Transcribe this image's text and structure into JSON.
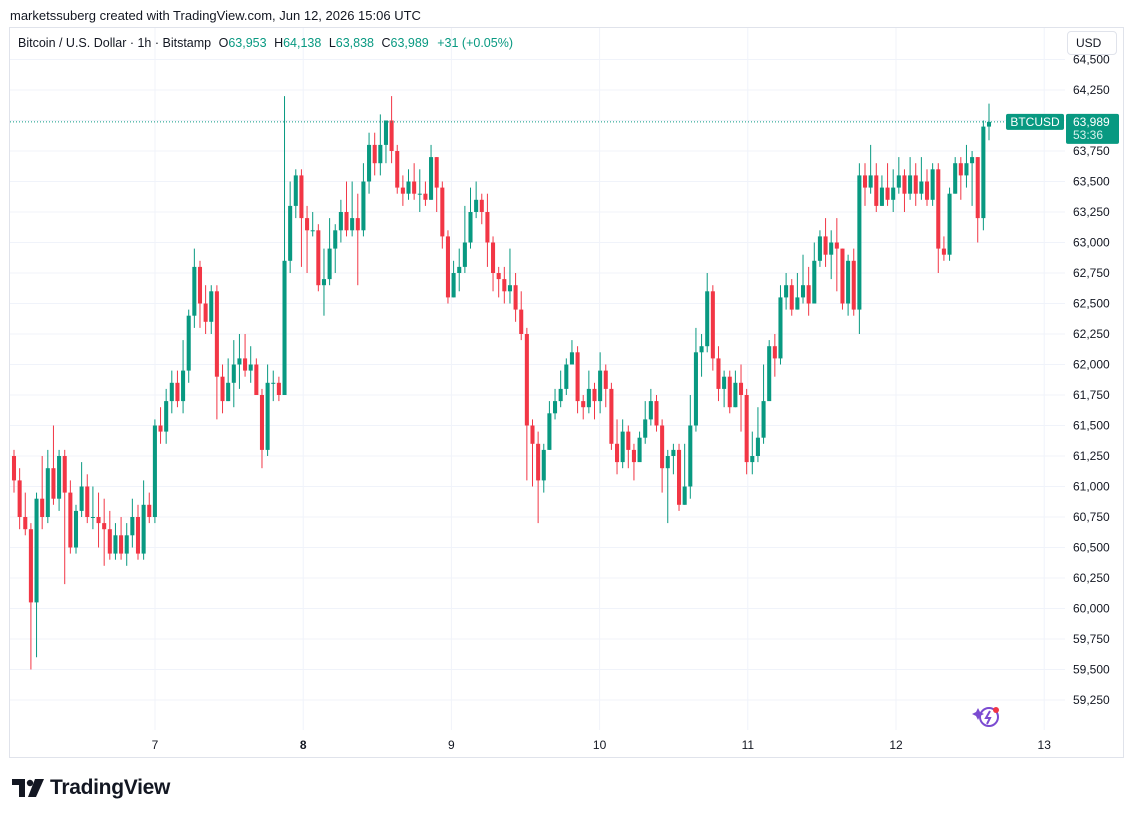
{
  "header": {
    "credit": "marketssuberg created with TradingView.com, Jun 12, 2026 15:06 UTC",
    "symbol": "Bitcoin / U.S. Dollar · 1h · Bitstamp",
    "o_label": "O",
    "o_value": "63,953",
    "h_label": "H",
    "h_value": "64,138",
    "l_label": "L",
    "l_value": "63,838",
    "c_label": "C",
    "c_value": "63,989",
    "change": "+31 (+0.05%)",
    "currency_button": "USD"
  },
  "brand": {
    "name": "TradingView"
  },
  "colors": {
    "up": "#089981",
    "down": "#f23645",
    "grid": "#f0f3fa",
    "text": "#131722"
  },
  "chart_data": {
    "type": "candlestick",
    "symbol": "BTCUSD",
    "interval": "1h",
    "ylim": [
      59100,
      64500
    ],
    "y_ticks": [
      "59,250",
      "59,500",
      "59,750",
      "60,000",
      "60,250",
      "60,500",
      "60,750",
      "61,000",
      "61,250",
      "61,500",
      "61,750",
      "62,000",
      "62,250",
      "62,500",
      "62,750",
      "63,000",
      "63,250",
      "63,500",
      "63,750",
      "64,000",
      "64,250",
      "64,500"
    ],
    "y_tick_values": [
      59250,
      59500,
      59750,
      60000,
      60250,
      60500,
      60750,
      61000,
      61250,
      61500,
      61750,
      62000,
      62250,
      62500,
      62750,
      63000,
      63250,
      63500,
      63750,
      64000,
      64250,
      64500
    ],
    "x_ticks": [
      {
        "label": "7",
        "day": 7,
        "bold": false
      },
      {
        "label": "8",
        "day": 8,
        "bold": true
      },
      {
        "label": "9",
        "day": 9,
        "bold": false
      },
      {
        "label": "10",
        "day": 10,
        "bold": false
      },
      {
        "label": "11",
        "day": 11,
        "bold": false
      },
      {
        "label": "12",
        "day": 12,
        "bold": false
      },
      {
        "label": "13",
        "day": 13,
        "bold": false
      }
    ],
    "last_price": {
      "label": "BTCUSD",
      "price": "63,989",
      "countdown": "53:36",
      "value": 63989
    },
    "start_day": 6.05,
    "candle_days": 0.0417,
    "candles": [
      [
        61250,
        61050,
        61300,
        60950
      ],
      [
        61050,
        60750,
        61150,
        60650
      ],
      [
        60750,
        60650,
        60950,
        60600
      ],
      [
        60650,
        60050,
        60700,
        59500
      ],
      [
        60050,
        60900,
        60950,
        59600
      ],
      [
        60900,
        60750,
        61250,
        60650
      ],
      [
        60750,
        61150,
        61300,
        60700
      ],
      [
        61150,
        60900,
        61500,
        60850
      ],
      [
        60900,
        61250,
        61300,
        60800
      ],
      [
        61250,
        60950,
        61300,
        60200
      ],
      [
        60950,
        60500,
        61050,
        60450
      ],
      [
        60500,
        60800,
        60850,
        60450
      ],
      [
        60800,
        61000,
        61200,
        60750
      ],
      [
        61000,
        60750,
        61100,
        60700
      ],
      [
        60750,
        60750,
        61000,
        60650
      ],
      [
        60750,
        60700,
        60950,
        60500
      ],
      [
        60700,
        60650,
        60900,
        60350
      ],
      [
        60650,
        60450,
        60800,
        60400
      ],
      [
        60450,
        60600,
        60700,
        60400
      ],
      [
        60600,
        60450,
        60750,
        60400
      ],
      [
        60450,
        60600,
        60700,
        60350
      ],
      [
        60600,
        60750,
        60900,
        60500
      ],
      [
        60750,
        60450,
        60850,
        60400
      ],
      [
        60450,
        60850,
        61050,
        60400
      ],
      [
        60850,
        60750,
        60950,
        60700
      ],
      [
        60750,
        61500,
        61550,
        60700
      ],
      [
        61500,
        61450,
        61650,
        61350
      ],
      [
        61450,
        61700,
        61800,
        61350
      ],
      [
        61700,
        61850,
        61950,
        61600
      ],
      [
        61850,
        61700,
        61950,
        61650
      ],
      [
        61700,
        61950,
        62200,
        61600
      ],
      [
        61950,
        62400,
        62450,
        61850
      ],
      [
        62400,
        62800,
        62950,
        62300
      ],
      [
        62800,
        62500,
        62850,
        62300
      ],
      [
        62500,
        62350,
        62650,
        62250
      ],
      [
        62350,
        62600,
        62650,
        62250
      ],
      [
        62600,
        61900,
        62650,
        61550
      ],
      [
        61900,
        61700,
        62000,
        61600
      ],
      [
        61700,
        61850,
        62050,
        61700
      ],
      [
        61850,
        62000,
        62200,
        61650
      ],
      [
        62000,
        62050,
        62250,
        61800
      ],
      [
        62050,
        61950,
        62250,
        61900
      ],
      [
        61950,
        62000,
        62150,
        61850
      ],
      [
        62000,
        61750,
        62050,
        61750
      ],
      [
        61750,
        61300,
        61800,
        61150
      ],
      [
        61300,
        61850,
        62000,
        61250
      ],
      [
        61850,
        61850,
        61950,
        61700
      ],
      [
        61850,
        61750,
        61900,
        61700
      ],
      [
        61750,
        62850,
        64200,
        61750
      ],
      [
        62850,
        63300,
        63500,
        62750
      ],
      [
        63300,
        63550,
        63600,
        63200
      ],
      [
        63550,
        63200,
        63600,
        62800
      ],
      [
        63200,
        63100,
        63300,
        62750
      ],
      [
        63100,
        63100,
        63250,
        63050
      ],
      [
        63100,
        62650,
        63150,
        62600
      ],
      [
        62650,
        62700,
        62950,
        62400
      ],
      [
        62700,
        62950,
        63200,
        62650
      ],
      [
        62950,
        63100,
        63150,
        62750
      ],
      [
        63100,
        63250,
        63350,
        63000
      ],
      [
        63250,
        63100,
        63500,
        63050
      ],
      [
        63100,
        63200,
        63500,
        63050
      ],
      [
        63200,
        63100,
        63400,
        62650
      ],
      [
        63100,
        63500,
        63650,
        63050
      ],
      [
        63500,
        63800,
        63900,
        63400
      ],
      [
        63800,
        63650,
        63900,
        63550
      ],
      [
        63650,
        63800,
        64050,
        63550
      ],
      [
        63800,
        64000,
        64000,
        63650
      ],
      [
        64000,
        63750,
        64200,
        63650
      ],
      [
        63750,
        63450,
        63800,
        63400
      ],
      [
        63450,
        63400,
        63550,
        63300
      ],
      [
        63400,
        63500,
        63600,
        63350
      ],
      [
        63500,
        63400,
        63650,
        63350
      ],
      [
        63400,
        63400,
        63600,
        63250
      ],
      [
        63400,
        63350,
        63500,
        63300
      ],
      [
        63350,
        63700,
        63800,
        63350
      ],
      [
        63700,
        63450,
        63700,
        63250
      ],
      [
        63450,
        63050,
        63500,
        62950
      ],
      [
        63050,
        62550,
        63100,
        62500
      ],
      [
        62550,
        62750,
        62850,
        62550
      ],
      [
        62750,
        62800,
        62950,
        62600
      ],
      [
        62800,
        63000,
        63300,
        62750
      ],
      [
        63000,
        63250,
        63450,
        62950
      ],
      [
        63250,
        63350,
        63500,
        63200
      ],
      [
        63350,
        63250,
        63400,
        63150
      ],
      [
        63250,
        63000,
        63400,
        62800
      ],
      [
        63000,
        62750,
        63050,
        62600
      ],
      [
        62750,
        62700,
        62800,
        62550
      ],
      [
        62700,
        62600,
        62800,
        62500
      ],
      [
        62600,
        62650,
        62950,
        62500
      ],
      [
        62650,
        62450,
        62750,
        62350
      ],
      [
        62450,
        62250,
        62600,
        62200
      ],
      [
        62250,
        61500,
        62300,
        61050
      ],
      [
        61500,
        61350,
        61550,
        61000
      ],
      [
        61350,
        61050,
        61450,
        60700
      ],
      [
        61050,
        61300,
        61350,
        60950
      ],
      [
        61300,
        61600,
        61700,
        61300
      ],
      [
        61600,
        61700,
        61800,
        61550
      ],
      [
        61700,
        61800,
        61950,
        61650
      ],
      [
        61800,
        62000,
        62050,
        61750
      ],
      [
        62000,
        62100,
        62200,
        62000
      ],
      [
        62100,
        61700,
        62150,
        61600
      ],
      [
        61700,
        61650,
        61750,
        61550
      ],
      [
        61650,
        61800,
        61950,
        61600
      ],
      [
        61800,
        61700,
        61850,
        61550
      ],
      [
        61700,
        61950,
        62100,
        61600
      ],
      [
        61950,
        61800,
        62000,
        61650
      ],
      [
        61800,
        61350,
        61850,
        61300
      ],
      [
        61350,
        61200,
        61550,
        61100
      ],
      [
        61200,
        61450,
        61550,
        61150
      ],
      [
        61450,
        61300,
        61500,
        61150
      ],
      [
        61300,
        61200,
        61350,
        61050
      ],
      [
        61200,
        61400,
        61450,
        61250
      ],
      [
        61400,
        61550,
        61700,
        61350
      ],
      [
        61550,
        61700,
        61800,
        61500
      ],
      [
        61700,
        61500,
        61750,
        61450
      ],
      [
        61500,
        61150,
        61550,
        60950
      ],
      [
        61150,
        61250,
        61300,
        60700
      ],
      [
        61250,
        61300,
        61350,
        61100
      ],
      [
        61300,
        60850,
        61350,
        60800
      ],
      [
        60850,
        61000,
        61350,
        60850
      ],
      [
        61000,
        61500,
        61750,
        60900
      ],
      [
        61500,
        62100,
        62300,
        61450
      ],
      [
        62100,
        62150,
        62250,
        61900
      ],
      [
        62150,
        62600,
        62750,
        62100
      ],
      [
        62600,
        62050,
        62650,
        61950
      ],
      [
        62050,
        61800,
        62150,
        61700
      ],
      [
        61800,
        61900,
        61950,
        61650
      ],
      [
        61900,
        61650,
        61950,
        61600
      ],
      [
        61650,
        61850,
        61950,
        61650
      ],
      [
        61850,
        61750,
        62000,
        61450
      ],
      [
        61750,
        61200,
        61800,
        61100
      ],
      [
        61200,
        61250,
        61450,
        61100
      ],
      [
        61250,
        61400,
        61650,
        61200
      ],
      [
        61400,
        61700,
        62000,
        61350
      ],
      [
        61700,
        62150,
        62200,
        61750
      ],
      [
        62150,
        62050,
        62250,
        61900
      ],
      [
        62050,
        62550,
        62650,
        62000
      ],
      [
        62550,
        62650,
        62750,
        62450
      ],
      [
        62650,
        62450,
        62700,
        62400
      ],
      [
        62450,
        62550,
        62750,
        62450
      ],
      [
        62550,
        62650,
        62900,
        62500
      ],
      [
        62650,
        62500,
        62800,
        62400
      ],
      [
        62500,
        62850,
        63000,
        62700
      ],
      [
        62850,
        63050,
        63100,
        62800
      ],
      [
        63050,
        62900,
        63200,
        62800
      ],
      [
        62900,
        63000,
        63100,
        62700
      ],
      [
        63000,
        62950,
        63200,
        62600
      ],
      [
        62950,
        62500,
        62950,
        62450
      ],
      [
        62500,
        62850,
        62900,
        62400
      ],
      [
        62850,
        62450,
        62950,
        62400
      ],
      [
        62450,
        63550,
        63650,
        62250
      ],
      [
        63550,
        63450,
        63650,
        63300
      ],
      [
        63450,
        63550,
        63800,
        63400
      ],
      [
        63550,
        63300,
        63650,
        63250
      ],
      [
        63300,
        63450,
        63550,
        63300
      ],
      [
        63450,
        63350,
        63650,
        63300
      ],
      [
        63350,
        63450,
        63600,
        63250
      ],
      [
        63450,
        63550,
        63700,
        63400
      ],
      [
        63550,
        63400,
        63600,
        63250
      ],
      [
        63400,
        63550,
        63700,
        63350
      ],
      [
        63550,
        63400,
        63650,
        63300
      ],
      [
        63400,
        63500,
        63700,
        63350
      ],
      [
        63500,
        63350,
        63600,
        63300
      ],
      [
        63350,
        63600,
        63650,
        63300
      ],
      [
        63600,
        62950,
        63650,
        62750
      ],
      [
        62950,
        62900,
        63050,
        62850
      ],
      [
        62900,
        63400,
        63450,
        62850
      ],
      [
        63400,
        63650,
        63700,
        63400
      ],
      [
        63650,
        63550,
        63700,
        63350
      ],
      [
        63550,
        63650,
        63800,
        63450
      ],
      [
        63650,
        63700,
        63750,
        63300
      ],
      [
        63700,
        63200,
        63700,
        63000
      ],
      [
        63200,
        63950,
        64000,
        63100
      ],
      [
        63950,
        63989,
        64138,
        63838
      ]
    ]
  }
}
